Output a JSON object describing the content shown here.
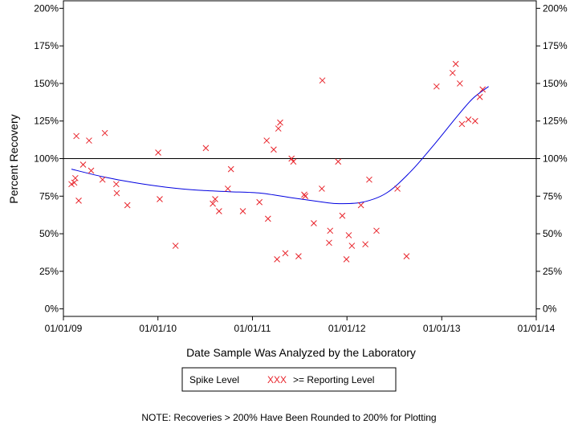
{
  "chart_data": {
    "type": "scatter",
    "xlabel": "Date Sample Was Analyzed by the Laboratory",
    "ylabel": "Percent Recovery",
    "x_ticks": [
      "01/01/09",
      "01/01/10",
      "01/01/11",
      "01/01/12",
      "01/01/13",
      "01/01/14"
    ],
    "xlim": [
      "2009-01-01",
      "2014-01-01"
    ],
    "y_ticks": [
      "0%",
      "25%",
      "50%",
      "75%",
      "100%",
      "125%",
      "150%",
      "175%",
      "200%"
    ],
    "ylim": [
      -5,
      205
    ],
    "y_tick_values": [
      0,
      25,
      50,
      75,
      100,
      125,
      150,
      175,
      200
    ],
    "reference_line": 100,
    "grid": false,
    "legend": {
      "position": "bottom",
      "items": [
        {
          "label": "Spike Level",
          "marker": "none"
        },
        {
          "label": ">= Reporting Level",
          "marker": "xxx",
          "marker_text": "XXX",
          "color": "#e8232a"
        }
      ]
    },
    "series": [
      {
        "name": ">= Reporting Level",
        "marker": "x",
        "color": "#e8232a",
        "points": [
          [
            "2009-02-01",
            83
          ],
          [
            "2009-02-12",
            84
          ],
          [
            "2009-02-16",
            87
          ],
          [
            "2009-02-20",
            115
          ],
          [
            "2009-03-01",
            72
          ],
          [
            "2009-03-18",
            96
          ],
          [
            "2009-04-10",
            112
          ],
          [
            "2009-04-18",
            92
          ],
          [
            "2009-06-01",
            86
          ],
          [
            "2009-06-10",
            117
          ],
          [
            "2009-07-24",
            83
          ],
          [
            "2009-07-26",
            77
          ],
          [
            "2009-09-05",
            69
          ],
          [
            "2010-01-02",
            104
          ],
          [
            "2010-01-08",
            73
          ],
          [
            "2010-03-10",
            42
          ],
          [
            "2010-07-05",
            107
          ],
          [
            "2010-08-01",
            70
          ],
          [
            "2010-08-10",
            73
          ],
          [
            "2010-08-25",
            65
          ],
          [
            "2010-09-28",
            80
          ],
          [
            "2010-10-10",
            93
          ],
          [
            "2010-11-25",
            65
          ],
          [
            "2011-01-28",
            71
          ],
          [
            "2011-02-25",
            112
          ],
          [
            "2011-03-02",
            60
          ],
          [
            "2011-03-24",
            106
          ],
          [
            "2011-04-06",
            33
          ],
          [
            "2011-04-11",
            120
          ],
          [
            "2011-04-18",
            124
          ],
          [
            "2011-05-08",
            37
          ],
          [
            "2011-06-01",
            100
          ],
          [
            "2011-06-08",
            98
          ],
          [
            "2011-06-28",
            35
          ],
          [
            "2011-07-20",
            76
          ],
          [
            "2011-07-24",
            75
          ],
          [
            "2011-08-26",
            57
          ],
          [
            "2011-09-26",
            80
          ],
          [
            "2011-09-28",
            152
          ],
          [
            "2011-10-24",
            44
          ],
          [
            "2011-10-28",
            52
          ],
          [
            "2011-11-28",
            98
          ],
          [
            "2011-12-14",
            62
          ],
          [
            "2011-12-30",
            33
          ],
          [
            "2012-01-08",
            49
          ],
          [
            "2012-01-20",
            42
          ],
          [
            "2012-02-24",
            69
          ],
          [
            "2012-03-12",
            43
          ],
          [
            "2012-03-27",
            86
          ],
          [
            "2012-04-24",
            52
          ],
          [
            "2012-07-14",
            80
          ],
          [
            "2012-08-18",
            35
          ],
          [
            "2012-12-12",
            148
          ],
          [
            "2013-02-12",
            157
          ],
          [
            "2013-02-24",
            163
          ],
          [
            "2013-03-12",
            150
          ],
          [
            "2013-03-20",
            123
          ],
          [
            "2013-04-14",
            126
          ],
          [
            "2013-05-10",
            125
          ],
          [
            "2013-05-28",
            141
          ],
          [
            "2013-06-08",
            146
          ]
        ]
      },
      {
        "name": "Trend",
        "type": "line",
        "color": "#0000e0",
        "points": [
          [
            "2009-02-01",
            93
          ],
          [
            "2009-06-01",
            88
          ],
          [
            "2009-10-01",
            84
          ],
          [
            "2010-02-01",
            81
          ],
          [
            "2010-06-01",
            79
          ],
          [
            "2010-10-01",
            78
          ],
          [
            "2011-02-01",
            77
          ],
          [
            "2011-06-01",
            74
          ],
          [
            "2011-10-01",
            71
          ],
          [
            "2011-12-01",
            70
          ],
          [
            "2012-03-01",
            71
          ],
          [
            "2012-06-01",
            77
          ],
          [
            "2012-09-01",
            91
          ],
          [
            "2012-12-01",
            109
          ],
          [
            "2013-03-01",
            128
          ],
          [
            "2013-05-01",
            140
          ],
          [
            "2013-07-01",
            148
          ]
        ]
      }
    ]
  },
  "note": "NOTE: Recoveries > 200% Have Been Rounded to 200% for Plotting"
}
